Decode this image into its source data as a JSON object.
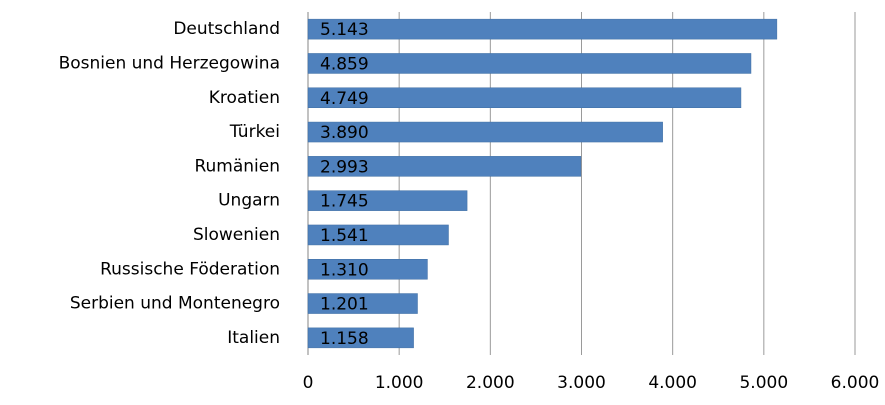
{
  "chart_data": {
    "type": "bar",
    "orientation": "horizontal",
    "categories": [
      "Deutschland",
      "Bosnien und Herzegowina",
      "Kroatien",
      "Türkei",
      "Rumänien",
      "Ungarn",
      "Slowenien",
      "Russische Föderation",
      "Serbien und Montenegro",
      "Italien"
    ],
    "values": [
      5143,
      4859,
      4749,
      3890,
      2993,
      1745,
      1541,
      1310,
      1201,
      1158
    ],
    "value_labels": [
      "5.143",
      "4.859",
      "4.749",
      "3.890",
      "2.993",
      "1.745",
      "1.541",
      "1.310",
      "1.201",
      "1.158"
    ],
    "color": "#4f81bd",
    "xlim": [
      0,
      6000
    ],
    "xticks": [
      0,
      {
        "value": 1000,
        "label": "1.000"
      },
      {
        "value": 2000,
        "label": "2.000"
      },
      {
        "value": 3000,
        "label": "3.000"
      },
      {
        "value": 4000,
        "label": "4.000"
      },
      {
        "value": 5000,
        "label": "5.000"
      },
      {
        "value": 6000,
        "label": "6.000"
      }
    ],
    "grid": true
  }
}
